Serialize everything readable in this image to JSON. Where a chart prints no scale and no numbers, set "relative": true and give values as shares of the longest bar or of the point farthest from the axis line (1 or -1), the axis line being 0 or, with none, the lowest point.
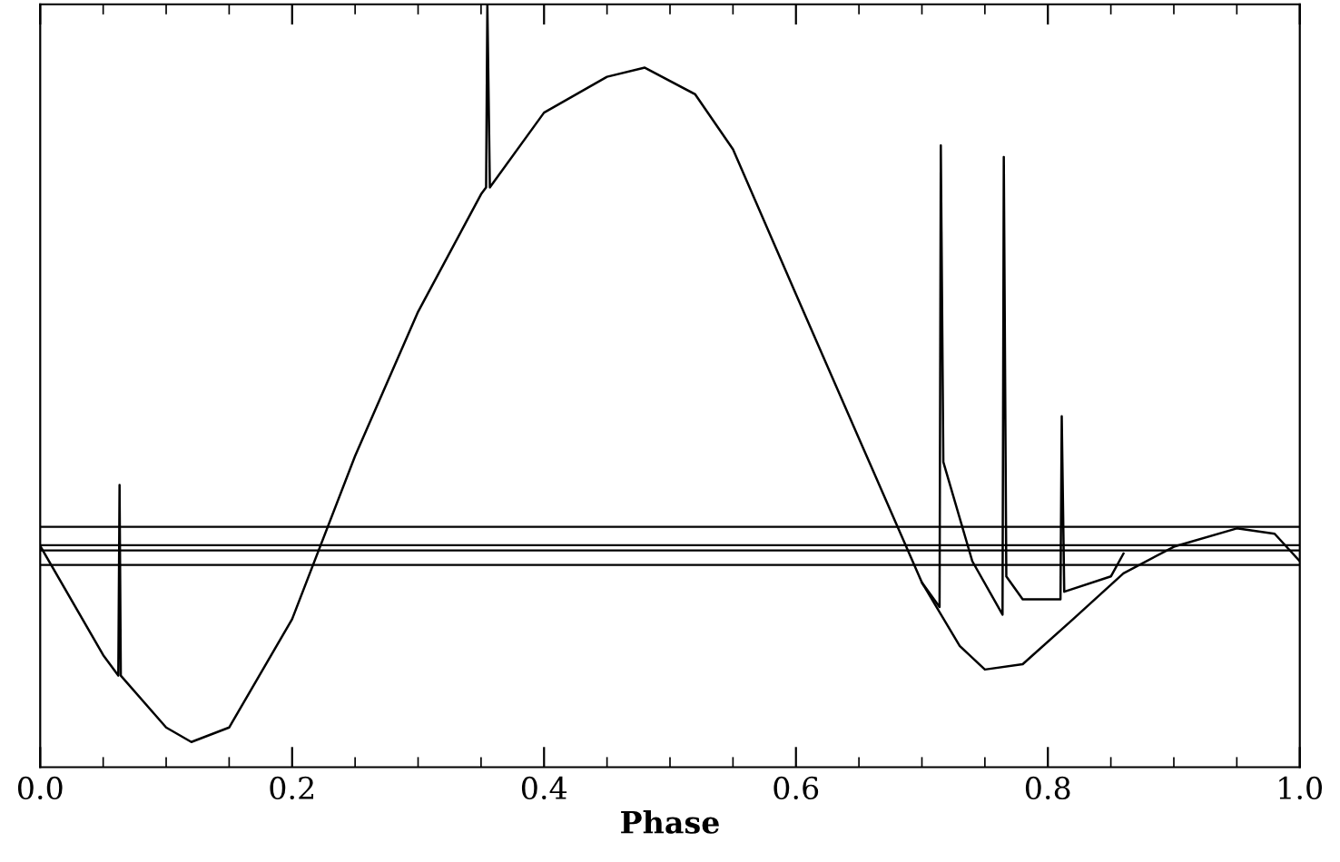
{
  "chart_data": {
    "type": "line",
    "relative": true,
    "xlabel": "Phase",
    "tick_labels": "x",
    "xlim": [
      0,
      1
    ],
    "xticks": [
      {
        "value": 0,
        "label": "0.0"
      },
      {
        "value": 0.05,
        "label": null
      },
      {
        "value": 0.1,
        "label": null
      },
      {
        "value": 0.15,
        "label": null
      },
      {
        "value": 0.2,
        "label": "0.2"
      },
      {
        "value": 0.25,
        "label": null
      },
      {
        "value": 0.3,
        "label": null
      },
      {
        "value": 0.35,
        "label": null
      },
      {
        "value": 0.4,
        "label": "0.4"
      },
      {
        "value": 0.45,
        "label": null
      },
      {
        "value": 0.5,
        "label": null
      },
      {
        "value": 0.55,
        "label": null
      },
      {
        "value": 0.6,
        "label": "0.6"
      },
      {
        "value": 0.65,
        "label": null
      },
      {
        "value": 0.7,
        "label": null
      },
      {
        "value": 0.75,
        "label": null
      },
      {
        "value": 0.8,
        "label": "0.8"
      },
      {
        "value": 0.85,
        "label": null
      },
      {
        "value": 0.9,
        "label": null
      },
      {
        "value": 0.95,
        "label": null
      },
      {
        "value": 1,
        "label": "1.0"
      }
    ],
    "series": [
      {
        "color": "#000000",
        "x": [
          0,
          0.05,
          0.062,
          0.063,
          0.064,
          0.1,
          0.12,
          0.15,
          0.2,
          0.25,
          0.3,
          0.35,
          0.354,
          0.355,
          0.357,
          0.4,
          0.45,
          0.48,
          0.52,
          0.55,
          0.6,
          0.65,
          0.7,
          0.73,
          0.75,
          0.78,
          0.82,
          0.86,
          0.9,
          0.95,
          0.98,
          1.0
        ],
        "values": [
          0.29,
          0.147,
          0.12,
          0.37,
          0.12,
          0.052,
          0.033,
          0.052,
          0.194,
          0.408,
          0.597,
          0.751,
          0.76,
          1.0,
          0.76,
          0.858,
          0.905,
          0.917,
          0.882,
          0.81,
          0.62,
          0.431,
          0.242,
          0.159,
          0.128,
          0.135,
          0.194,
          0.254,
          0.289,
          0.313,
          0.306,
          0.27
        ]
      },
      {
        "color": "#000000",
        "x": [
          0.7,
          0.714,
          0.715,
          0.717,
          0.74,
          0.764,
          0.765,
          0.767,
          0.78,
          0.81,
          0.811,
          0.813,
          0.85,
          0.86
        ],
        "values": [
          0.242,
          0.21,
          0.815,
          0.4,
          0.27,
          0.2,
          0.8,
          0.25,
          0.22,
          0.22,
          0.46,
          0.23,
          0.25,
          0.28
        ]
      }
    ],
    "ref_lines": [
      {
        "axis": "y",
        "value": 0.315,
        "color": "#000000"
      },
      {
        "axis": "y",
        "value": 0.291,
        "color": "#000000"
      },
      {
        "axis": "y",
        "value": 0.284,
        "color": "#000000"
      },
      {
        "axis": "y",
        "value": 0.265,
        "color": "#000000"
      }
    ]
  }
}
